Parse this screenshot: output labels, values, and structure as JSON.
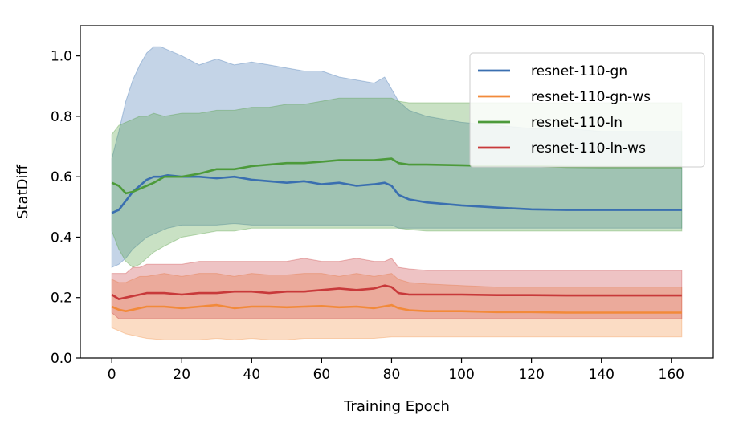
{
  "chart_data": {
    "type": "line",
    "xlabel": "Training Epoch",
    "ylabel": "StatDiff",
    "xlim": [
      -9,
      172
    ],
    "ylim": [
      0.0,
      1.1
    ],
    "xticks": [
      0,
      20,
      40,
      60,
      80,
      100,
      120,
      140,
      160
    ],
    "yticks": [
      0.0,
      0.2,
      0.4,
      0.6,
      0.8,
      1.0
    ],
    "legend_position": "top-right",
    "grid": false,
    "series": [
      {
        "name": "resnet-110-gn",
        "color": "#3a6fb0",
        "x": [
          0,
          2,
          4,
          6,
          8,
          10,
          12,
          14,
          16,
          20,
          25,
          30,
          35,
          40,
          45,
          50,
          55,
          60,
          65,
          70,
          75,
          78,
          80,
          82,
          85,
          90,
          100,
          110,
          120,
          130,
          140,
          150,
          163
        ],
        "mean": [
          0.48,
          0.49,
          0.52,
          0.55,
          0.57,
          0.59,
          0.6,
          0.6,
          0.605,
          0.6,
          0.6,
          0.595,
          0.6,
          0.59,
          0.585,
          0.58,
          0.585,
          0.575,
          0.58,
          0.57,
          0.575,
          0.58,
          0.57,
          0.54,
          0.525,
          0.515,
          0.505,
          0.498,
          0.492,
          0.49,
          0.49,
          0.49,
          0.49
        ],
        "lower": [
          0.3,
          0.31,
          0.33,
          0.36,
          0.38,
          0.4,
          0.41,
          0.42,
          0.43,
          0.44,
          0.44,
          0.44,
          0.445,
          0.44,
          0.44,
          0.44,
          0.44,
          0.44,
          0.44,
          0.44,
          0.44,
          0.44,
          0.44,
          0.43,
          0.43,
          0.43,
          0.43,
          0.43,
          0.43,
          0.43,
          0.43,
          0.43,
          0.43
        ],
        "upper": [
          0.66,
          0.75,
          0.85,
          0.92,
          0.97,
          1.01,
          1.03,
          1.03,
          1.02,
          1.0,
          0.97,
          0.99,
          0.97,
          0.98,
          0.97,
          0.96,
          0.95,
          0.95,
          0.93,
          0.92,
          0.91,
          0.93,
          0.89,
          0.85,
          0.82,
          0.8,
          0.78,
          0.77,
          0.76,
          0.76,
          0.75,
          0.75,
          0.75
        ]
      },
      {
        "name": "resnet-110-gn-ws",
        "color": "#f28a3a",
        "x": [
          0,
          2,
          4,
          6,
          8,
          10,
          15,
          20,
          25,
          30,
          35,
          40,
          45,
          50,
          55,
          60,
          65,
          70,
          75,
          80,
          82,
          85,
          90,
          100,
          110,
          120,
          130,
          140,
          150,
          163
        ],
        "mean": [
          0.17,
          0.16,
          0.155,
          0.16,
          0.165,
          0.17,
          0.17,
          0.165,
          0.17,
          0.175,
          0.165,
          0.17,
          0.17,
          0.168,
          0.17,
          0.172,
          0.168,
          0.17,
          0.165,
          0.175,
          0.165,
          0.158,
          0.155,
          0.155,
          0.152,
          0.152,
          0.15,
          0.15,
          0.15,
          0.15
        ],
        "lower": [
          0.1,
          0.09,
          0.08,
          0.075,
          0.07,
          0.065,
          0.06,
          0.06,
          0.06,
          0.065,
          0.06,
          0.065,
          0.06,
          0.06,
          0.065,
          0.065,
          0.065,
          0.065,
          0.065,
          0.07,
          0.07,
          0.07,
          0.07,
          0.07,
          0.07,
          0.07,
          0.07,
          0.07,
          0.07,
          0.07
        ],
        "upper": [
          0.26,
          0.25,
          0.25,
          0.26,
          0.27,
          0.27,
          0.28,
          0.27,
          0.28,
          0.28,
          0.27,
          0.28,
          0.275,
          0.275,
          0.28,
          0.28,
          0.27,
          0.28,
          0.27,
          0.28,
          0.26,
          0.25,
          0.245,
          0.24,
          0.235,
          0.235,
          0.235,
          0.235,
          0.235,
          0.235
        ]
      },
      {
        "name": "resnet-110-ln",
        "color": "#4c9a3a",
        "x": [
          0,
          2,
          4,
          6,
          8,
          10,
          12,
          15,
          20,
          25,
          30,
          35,
          40,
          45,
          50,
          55,
          60,
          65,
          70,
          75,
          80,
          82,
          85,
          90,
          100,
          110,
          120,
          130,
          140,
          150,
          163
        ],
        "mean": [
          0.58,
          0.57,
          0.545,
          0.55,
          0.56,
          0.57,
          0.58,
          0.6,
          0.6,
          0.61,
          0.625,
          0.625,
          0.635,
          0.64,
          0.645,
          0.645,
          0.65,
          0.655,
          0.655,
          0.655,
          0.66,
          0.645,
          0.64,
          0.64,
          0.638,
          0.635,
          0.635,
          0.633,
          0.632,
          0.632,
          0.632
        ],
        "lower": [
          0.42,
          0.36,
          0.32,
          0.3,
          0.31,
          0.33,
          0.35,
          0.37,
          0.4,
          0.41,
          0.42,
          0.42,
          0.43,
          0.43,
          0.43,
          0.43,
          0.43,
          0.43,
          0.43,
          0.43,
          0.43,
          0.43,
          0.425,
          0.42,
          0.42,
          0.42,
          0.42,
          0.42,
          0.42,
          0.42,
          0.42
        ],
        "upper": [
          0.74,
          0.77,
          0.78,
          0.79,
          0.8,
          0.8,
          0.81,
          0.8,
          0.81,
          0.81,
          0.82,
          0.82,
          0.83,
          0.83,
          0.84,
          0.84,
          0.85,
          0.86,
          0.86,
          0.86,
          0.86,
          0.85,
          0.845,
          0.845,
          0.845,
          0.845,
          0.845,
          0.845,
          0.845,
          0.845,
          0.845
        ]
      },
      {
        "name": "resnet-110-ln-ws",
        "color": "#c8393a",
        "x": [
          0,
          2,
          4,
          6,
          8,
          10,
          15,
          20,
          25,
          30,
          35,
          40,
          45,
          50,
          55,
          60,
          65,
          70,
          75,
          78,
          80,
          82,
          85,
          90,
          100,
          110,
          120,
          130,
          140,
          150,
          163
        ],
        "mean": [
          0.21,
          0.195,
          0.2,
          0.205,
          0.21,
          0.215,
          0.215,
          0.21,
          0.215,
          0.215,
          0.22,
          0.22,
          0.215,
          0.22,
          0.22,
          0.225,
          0.23,
          0.225,
          0.23,
          0.24,
          0.235,
          0.215,
          0.21,
          0.21,
          0.21,
          0.208,
          0.208,
          0.207,
          0.207,
          0.207,
          0.207
        ],
        "lower": [
          0.15,
          0.13,
          0.13,
          0.13,
          0.13,
          0.13,
          0.13,
          0.13,
          0.13,
          0.13,
          0.13,
          0.13,
          0.13,
          0.13,
          0.13,
          0.13,
          0.13,
          0.13,
          0.13,
          0.13,
          0.13,
          0.13,
          0.13,
          0.13,
          0.13,
          0.13,
          0.13,
          0.13,
          0.13,
          0.13,
          0.13
        ],
        "upper": [
          0.28,
          0.28,
          0.28,
          0.3,
          0.3,
          0.31,
          0.31,
          0.31,
          0.32,
          0.32,
          0.32,
          0.32,
          0.32,
          0.32,
          0.33,
          0.32,
          0.32,
          0.33,
          0.32,
          0.32,
          0.33,
          0.3,
          0.295,
          0.29,
          0.29,
          0.29,
          0.29,
          0.29,
          0.29,
          0.29,
          0.29
        ]
      }
    ]
  }
}
